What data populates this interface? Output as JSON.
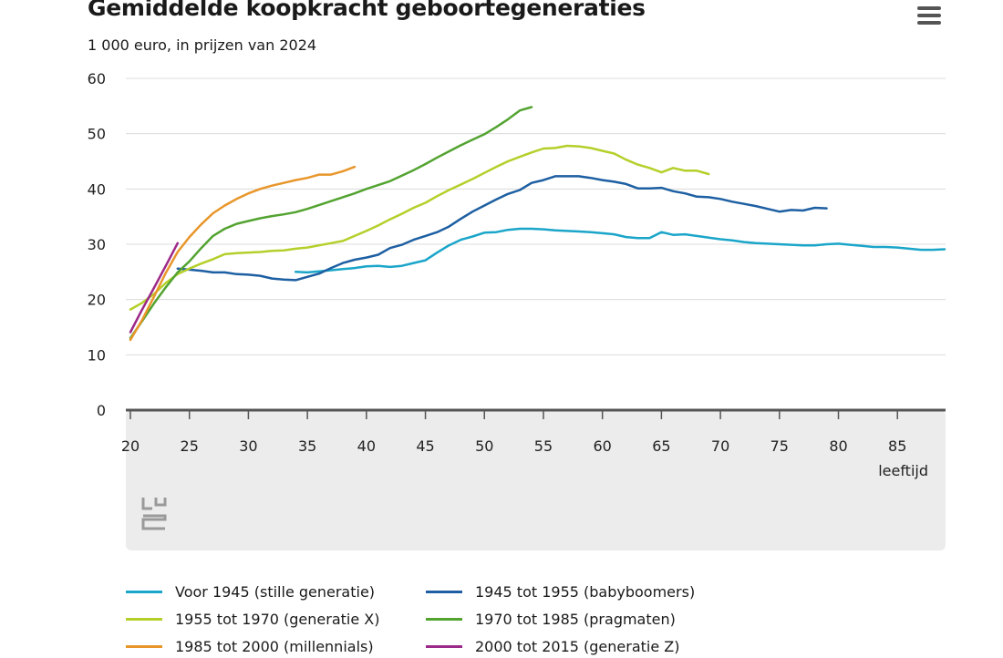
{
  "header": {
    "title": "Gemiddelde koopkracht geboortegeneraties",
    "subtitle": "1 000 euro, in prijzen van 2024",
    "menu_icon": "hamburger-menu-icon"
  },
  "logo_text": "cbs",
  "chart_data": {
    "type": "line",
    "title": "Gemiddelde koopkracht geboortegeneraties",
    "subtitle": "1 000 euro, in prijzen van 2024",
    "xlabel": "leeftijd",
    "ylabel": "",
    "xlim": [
      20,
      89
    ],
    "ylim": [
      0,
      60
    ],
    "x_ticks": [
      20,
      25,
      30,
      35,
      40,
      45,
      50,
      55,
      60,
      65,
      70,
      75,
      80,
      85
    ],
    "y_ticks": [
      0,
      10,
      20,
      30,
      40,
      50,
      60
    ],
    "grid": true,
    "legend_position": "bottom",
    "series": [
      {
        "name": "Voor 1945 (stille generatie)",
        "color": "#1aa5c9",
        "points": [
          [
            34,
            25
          ],
          [
            35,
            24.9
          ],
          [
            36,
            25.1
          ],
          [
            37,
            25.3
          ],
          [
            38,
            25.5
          ],
          [
            39,
            25.7
          ],
          [
            40,
            26
          ],
          [
            41,
            26.1
          ],
          [
            42,
            25.9
          ],
          [
            43,
            26.1
          ],
          [
            44,
            26.6
          ],
          [
            45,
            27.1
          ],
          [
            46,
            28.5
          ],
          [
            47,
            29.8
          ],
          [
            48,
            30.8
          ],
          [
            49,
            31.4
          ],
          [
            50,
            32.1
          ],
          [
            51,
            32.2
          ],
          [
            52,
            32.6
          ],
          [
            53,
            32.8
          ],
          [
            54,
            32.8
          ],
          [
            55,
            32.7
          ],
          [
            56,
            32.5
          ],
          [
            57,
            32.4
          ],
          [
            58,
            32.3
          ],
          [
            59,
            32.2
          ],
          [
            60,
            32
          ],
          [
            61,
            31.8
          ],
          [
            62,
            31.3
          ],
          [
            63,
            31.1
          ],
          [
            64,
            31.1
          ],
          [
            65,
            32.2
          ],
          [
            66,
            31.7
          ],
          [
            67,
            31.8
          ],
          [
            68,
            31.5
          ],
          [
            69,
            31.2
          ],
          [
            70,
            30.9
          ],
          [
            71,
            30.7
          ],
          [
            72,
            30.4
          ],
          [
            73,
            30.2
          ],
          [
            74,
            30.1
          ],
          [
            75,
            30
          ],
          [
            76,
            29.9
          ],
          [
            77,
            29.8
          ],
          [
            78,
            29.8
          ],
          [
            79,
            30
          ],
          [
            80,
            30.1
          ],
          [
            81,
            29.9
          ],
          [
            82,
            29.7
          ],
          [
            83,
            29.5
          ],
          [
            84,
            29.5
          ],
          [
            85,
            29.4
          ],
          [
            86,
            29.2
          ],
          [
            87,
            29
          ],
          [
            88,
            29
          ],
          [
            89,
            29.1
          ]
        ]
      },
      {
        "name": "1945 tot 1955 (babyboomers)",
        "color": "#1d5fa2",
        "points": [
          [
            24,
            25.6
          ],
          [
            25,
            25.4
          ],
          [
            26,
            25.2
          ],
          [
            27,
            24.9
          ],
          [
            28,
            24.9
          ],
          [
            29,
            24.6
          ],
          [
            30,
            24.5
          ],
          [
            31,
            24.3
          ],
          [
            32,
            23.8
          ],
          [
            33,
            23.6
          ],
          [
            34,
            23.5
          ],
          [
            35,
            24.1
          ],
          [
            36,
            24.7
          ],
          [
            37,
            25.7
          ],
          [
            38,
            26.6
          ],
          [
            39,
            27.2
          ],
          [
            40,
            27.6
          ],
          [
            41,
            28.1
          ],
          [
            42,
            29.3
          ],
          [
            43,
            29.9
          ],
          [
            44,
            30.8
          ],
          [
            45,
            31.5
          ],
          [
            46,
            32.2
          ],
          [
            47,
            33.2
          ],
          [
            48,
            34.6
          ],
          [
            49,
            35.9
          ],
          [
            50,
            37
          ],
          [
            51,
            38.1
          ],
          [
            52,
            39.1
          ],
          [
            53,
            39.8
          ],
          [
            54,
            41.1
          ],
          [
            55,
            41.6
          ],
          [
            56,
            42.3
          ],
          [
            57,
            42.3
          ],
          [
            58,
            42.3
          ],
          [
            59,
            42
          ],
          [
            60,
            41.6
          ],
          [
            61,
            41.3
          ],
          [
            62,
            40.9
          ],
          [
            63,
            40.1
          ],
          [
            64,
            40.1
          ],
          [
            65,
            40.2
          ],
          [
            66,
            39.6
          ],
          [
            67,
            39.2
          ],
          [
            68,
            38.6
          ],
          [
            69,
            38.5
          ],
          [
            70,
            38.2
          ],
          [
            71,
            37.7
          ],
          [
            72,
            37.3
          ],
          [
            73,
            36.9
          ],
          [
            74,
            36.4
          ],
          [
            75,
            35.9
          ],
          [
            76,
            36.2
          ],
          [
            77,
            36.1
          ],
          [
            78,
            36.6
          ],
          [
            79,
            36.5
          ]
        ]
      },
      {
        "name": "1955 tot 1970 (generatie X)",
        "color": "#b5cf2a",
        "points": [
          [
            20,
            18.2
          ],
          [
            21,
            19.4
          ],
          [
            22,
            21
          ],
          [
            23,
            23
          ],
          [
            24,
            24.6
          ],
          [
            25,
            25.6
          ],
          [
            26,
            26.5
          ],
          [
            27,
            27.3
          ],
          [
            28,
            28.2
          ],
          [
            29,
            28.4
          ],
          [
            30,
            28.5
          ],
          [
            31,
            28.6
          ],
          [
            32,
            28.8
          ],
          [
            33,
            28.9
          ],
          [
            34,
            29.2
          ],
          [
            35,
            29.4
          ],
          [
            36,
            29.8
          ],
          [
            37,
            30.2
          ],
          [
            38,
            30.6
          ],
          [
            39,
            31.5
          ],
          [
            40,
            32.4
          ],
          [
            41,
            33.4
          ],
          [
            42,
            34.5
          ],
          [
            43,
            35.5
          ],
          [
            44,
            36.6
          ],
          [
            45,
            37.5
          ],
          [
            46,
            38.7
          ],
          [
            47,
            39.8
          ],
          [
            48,
            40.8
          ],
          [
            49,
            41.8
          ],
          [
            50,
            42.9
          ],
          [
            51,
            44
          ],
          [
            52,
            45
          ],
          [
            53,
            45.8
          ],
          [
            54,
            46.6
          ],
          [
            55,
            47.3
          ],
          [
            56,
            47.4
          ],
          [
            57,
            47.8
          ],
          [
            58,
            47.7
          ],
          [
            59,
            47.4
          ],
          [
            60,
            46.9
          ],
          [
            61,
            46.4
          ],
          [
            62,
            45.3
          ],
          [
            63,
            44.4
          ],
          [
            64,
            43.8
          ],
          [
            65,
            43
          ],
          [
            66,
            43.8
          ],
          [
            67,
            43.3
          ],
          [
            68,
            43.3
          ],
          [
            69,
            42.7
          ]
        ]
      },
      {
        "name": "1970 tot 1985 (pragmaten)",
        "color": "#53a331",
        "points": [
          [
            20,
            13
          ],
          [
            21,
            16.1
          ],
          [
            22,
            19.3
          ],
          [
            23,
            22.2
          ],
          [
            24,
            24.9
          ],
          [
            25,
            26.9
          ],
          [
            26,
            29.3
          ],
          [
            27,
            31.5
          ],
          [
            28,
            32.8
          ],
          [
            29,
            33.7
          ],
          [
            30,
            34.2
          ],
          [
            31,
            34.7
          ],
          [
            32,
            35.1
          ],
          [
            33,
            35.4
          ],
          [
            34,
            35.8
          ],
          [
            35,
            36.4
          ],
          [
            36,
            37.1
          ],
          [
            37,
            37.8
          ],
          [
            38,
            38.5
          ],
          [
            39,
            39.2
          ],
          [
            40,
            40
          ],
          [
            41,
            40.7
          ],
          [
            42,
            41.4
          ],
          [
            43,
            42.4
          ],
          [
            44,
            43.4
          ],
          [
            45,
            44.5
          ],
          [
            46,
            45.7
          ],
          [
            47,
            46.8
          ],
          [
            48,
            47.9
          ],
          [
            49,
            48.9
          ],
          [
            50,
            49.9
          ],
          [
            51,
            51.2
          ],
          [
            52,
            52.6
          ],
          [
            53,
            54.2
          ],
          [
            54,
            54.8
          ]
        ]
      },
      {
        "name": "1985 tot 2000 (millennials)",
        "color": "#e8962a",
        "points": [
          [
            20,
            12.7
          ],
          [
            21,
            16.3
          ],
          [
            22,
            20.5
          ],
          [
            23,
            24.8
          ],
          [
            24,
            28.6
          ],
          [
            25,
            31.3
          ],
          [
            26,
            33.6
          ],
          [
            27,
            35.6
          ],
          [
            28,
            37
          ],
          [
            29,
            38.2
          ],
          [
            30,
            39.2
          ],
          [
            31,
            40
          ],
          [
            32,
            40.6
          ],
          [
            33,
            41.1
          ],
          [
            34,
            41.6
          ],
          [
            35,
            42
          ],
          [
            36,
            42.6
          ],
          [
            37,
            42.6
          ],
          [
            38,
            43.2
          ],
          [
            39,
            44
          ]
        ]
      },
      {
        "name": "2000 tot 2015 (generatie Z)",
        "color": "#9c2a88",
        "points": [
          [
            20,
            14.1
          ],
          [
            21,
            18.2
          ],
          [
            22,
            22.1
          ],
          [
            23,
            26.1
          ],
          [
            24,
            30.2
          ]
        ]
      }
    ]
  }
}
